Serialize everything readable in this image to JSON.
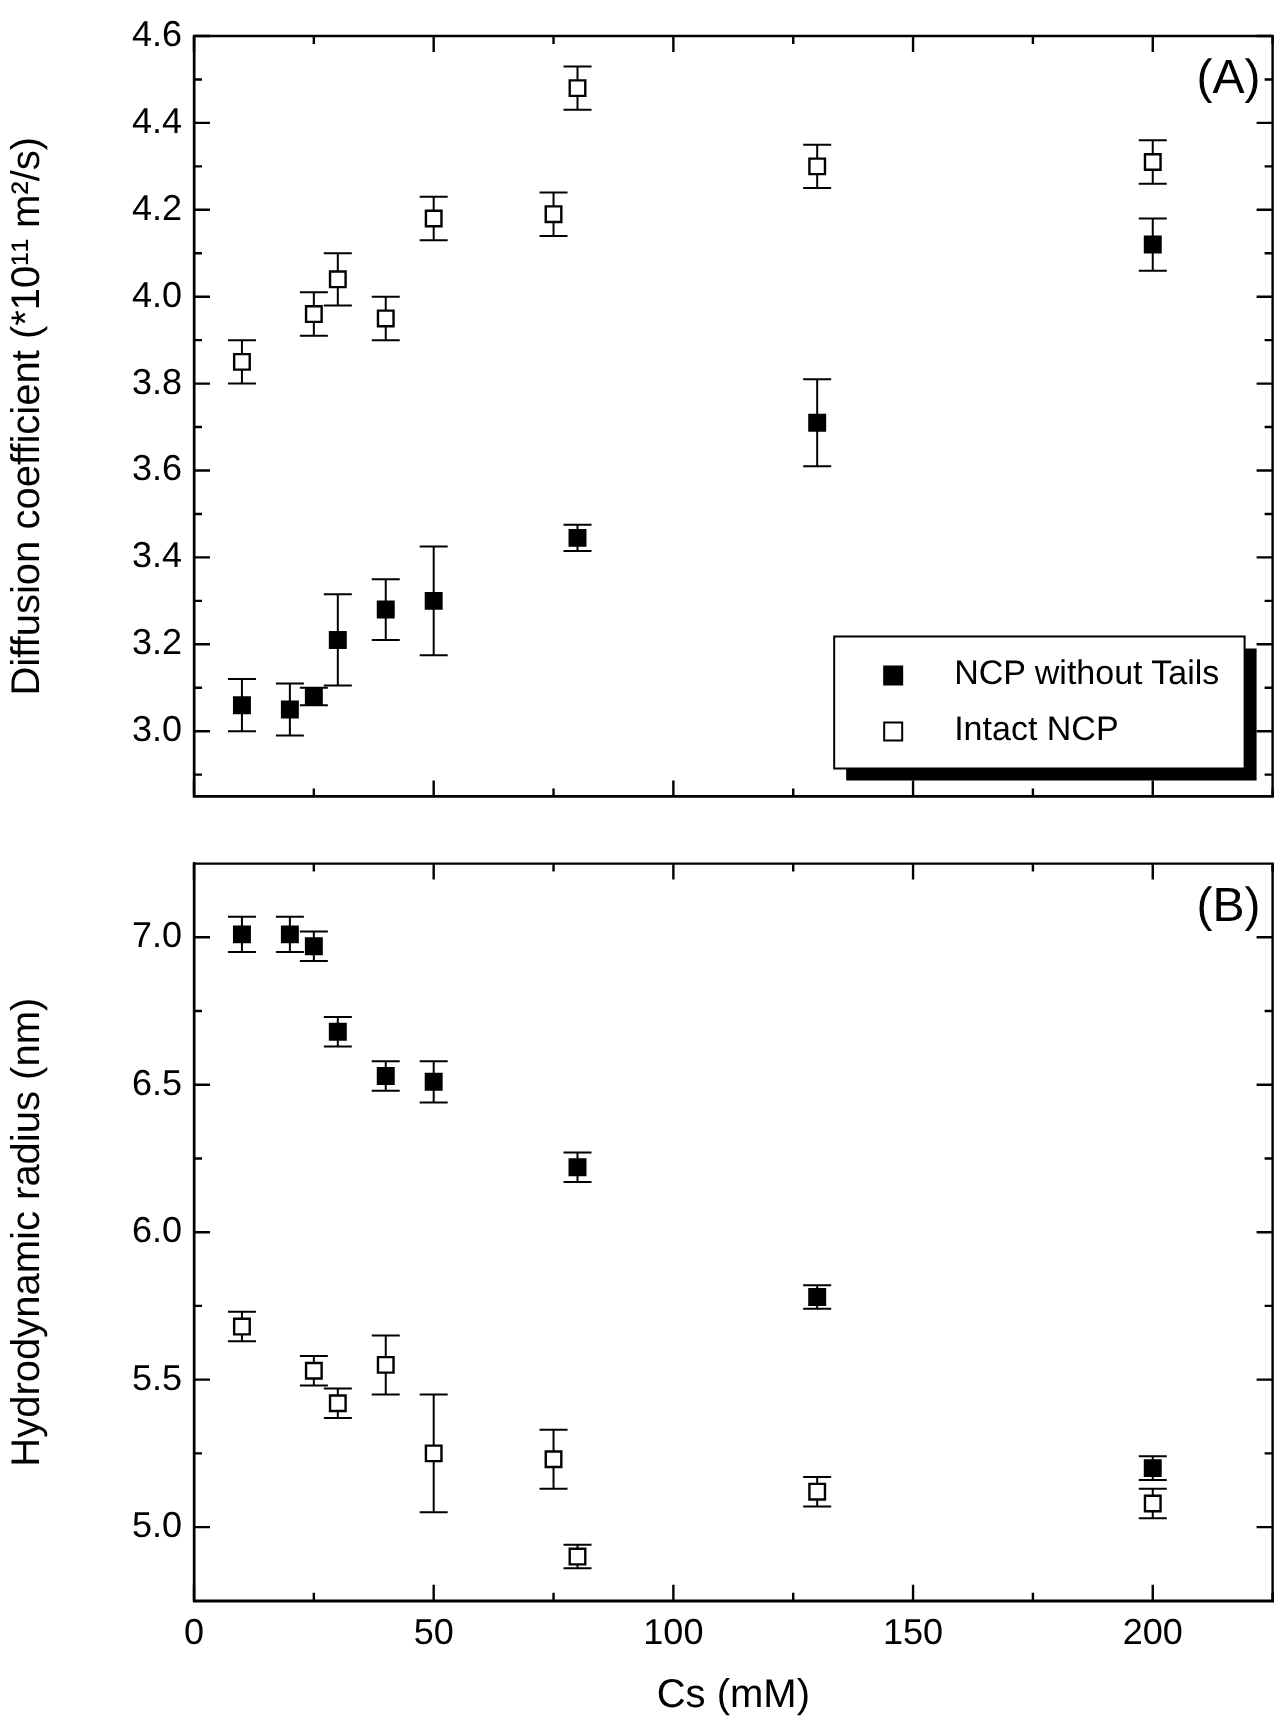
{
  "chart_data": [
    {
      "type": "scatter",
      "ylabel": "Diffusion coefficient (*10¹¹ m²/s)",
      "annotations": [
        "(A)"
      ],
      "xlim": [
        0,
        225
      ],
      "xticks": [
        0,
        {
          "value": 25,
          "label": null
        },
        50,
        {
          "value": 75,
          "label": null
        },
        100,
        {
          "value": 125,
          "label": null
        },
        150,
        {
          "value": 175,
          "label": null
        },
        200,
        {
          "value": 225,
          "label": null
        }
      ],
      "ylim": [
        2.85,
        4.6
      ],
      "yticks": [
        {
          "value": 2.9,
          "label": null
        },
        {
          "value": 3.0,
          "label": "3.0"
        },
        {
          "value": 3.1,
          "label": null
        },
        {
          "value": 3.2,
          "label": "3.2"
        },
        {
          "value": 3.3,
          "label": null
        },
        {
          "value": 3.4,
          "label": "3.4"
        },
        {
          "value": 3.5,
          "label": null
        },
        {
          "value": 3.6,
          "label": "3.6"
        },
        {
          "value": 3.7,
          "label": null
        },
        {
          "value": 3.8,
          "label": "3.8"
        },
        {
          "value": 3.9,
          "label": null
        },
        {
          "value": 4.0,
          "label": "4.0"
        },
        {
          "value": 4.1,
          "label": null
        },
        {
          "value": 4.2,
          "label": "4.2"
        },
        {
          "value": 4.3,
          "label": null
        },
        {
          "value": 4.4,
          "label": "4.4"
        },
        {
          "value": 4.5,
          "label": null
        },
        {
          "value": 4.6,
          "label": "4.6"
        }
      ],
      "tick_labels": "y",
      "marker": "square",
      "legend": "bottom right",
      "grid": false,
      "series": [
        {
          "name": "NCP without Tails",
          "color": "#000000",
          "x": [
            10,
            20,
            25,
            30,
            40,
            50,
            80,
            130,
            200
          ],
          "values": [
            3.06,
            3.05,
            3.08,
            3.21,
            3.28,
            3.3,
            3.445,
            3.71,
            4.12
          ],
          "errors": [
            0.06,
            0.06,
            0.02,
            0.105,
            0.07,
            0.125,
            0.03,
            0.1,
            0.06
          ]
        },
        {
          "name": "Intact NCP",
          "color": "#ffffff",
          "x": [
            10,
            25,
            30,
            40,
            50,
            75,
            80,
            130,
            200
          ],
          "values": [
            3.85,
            3.96,
            4.04,
            3.95,
            4.18,
            4.19,
            4.48,
            4.3,
            4.31
          ],
          "errors": [
            0.05,
            0.05,
            0.06,
            0.05,
            0.05,
            0.05,
            0.05,
            0.05,
            0.05
          ]
        }
      ]
    },
    {
      "type": "scatter",
      "xlabel": "Cs (mM)",
      "ylabel": "Hydrodynamic radius (nm)",
      "annotations": [
        "(B)"
      ],
      "xlim": [
        0,
        225
      ],
      "xticks": [
        0,
        {
          "value": 25,
          "label": null
        },
        50,
        {
          "value": 75,
          "label": null
        },
        100,
        {
          "value": 125,
          "label": null
        },
        150,
        {
          "value": 175,
          "label": null
        },
        200,
        {
          "value": 225,
          "label": null
        }
      ],
      "ylim": [
        4.75,
        7.25
      ],
      "yticks": [
        {
          "value": 5.0,
          "label": "5.0"
        },
        {
          "value": 5.25,
          "label": null
        },
        {
          "value": 5.5,
          "label": "5.5"
        },
        {
          "value": 5.75,
          "label": null
        },
        {
          "value": 6.0,
          "label": "6.0"
        },
        {
          "value": 6.25,
          "label": null
        },
        {
          "value": 6.5,
          "label": "6.5"
        },
        {
          "value": 6.75,
          "label": null
        },
        {
          "value": 7.0,
          "label": "7.0"
        }
      ],
      "marker": "square",
      "grid": false,
      "series": [
        {
          "color": "#000000",
          "x": [
            10,
            20,
            25,
            30,
            40,
            50,
            80,
            130,
            200
          ],
          "values": [
            7.01,
            7.01,
            6.97,
            6.68,
            6.53,
            6.51,
            6.22,
            5.78,
            5.2
          ],
          "errors": [
            0.06,
            0.06,
            0.05,
            0.05,
            0.05,
            0.07,
            0.05,
            0.04,
            0.04
          ]
        },
        {
          "color": "#ffffff",
          "x": [
            10,
            25,
            30,
            40,
            50,
            75,
            80,
            130,
            200
          ],
          "values": [
            5.68,
            5.53,
            5.42,
            5.55,
            5.25,
            5.23,
            4.9,
            5.12,
            5.08
          ],
          "errors": [
            0.05,
            0.05,
            0.05,
            0.1,
            0.2,
            0.1,
            0.04,
            0.05,
            0.05
          ]
        }
      ]
    }
  ]
}
